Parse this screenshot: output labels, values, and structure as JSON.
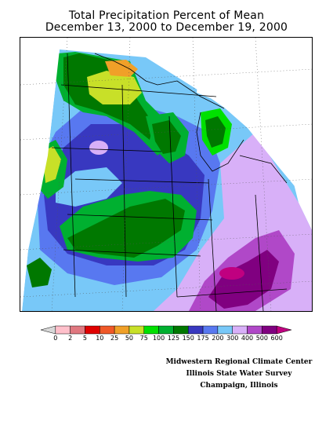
{
  "title_line1": "Total Precipitation Percent of Mean",
  "title_line2": "December 13, 2000 to December 19, 2000",
  "legend": {
    "labels": [
      "0",
      "2",
      "5",
      "10",
      "25",
      "50",
      "75",
      "100",
      "125",
      "150",
      "175",
      "200",
      "300",
      "400",
      "500",
      "600"
    ],
    "colors": [
      "#d8d8d8",
      "#ffc0cb",
      "#e07880",
      "#e00000",
      "#f05828",
      "#f0a028",
      "#c8e028",
      "#00e000",
      "#00b030",
      "#007800",
      "#3838c0",
      "#5878f0",
      "#78c8f8",
      "#d8b0f8",
      "#b048c8",
      "#800080",
      "#c00080"
    ]
  },
  "credits": {
    "line1": "Midwestern Regional Climate Center",
    "line2": "Illinois State Water Survey",
    "line3": "Champaign, Illinois"
  }
}
